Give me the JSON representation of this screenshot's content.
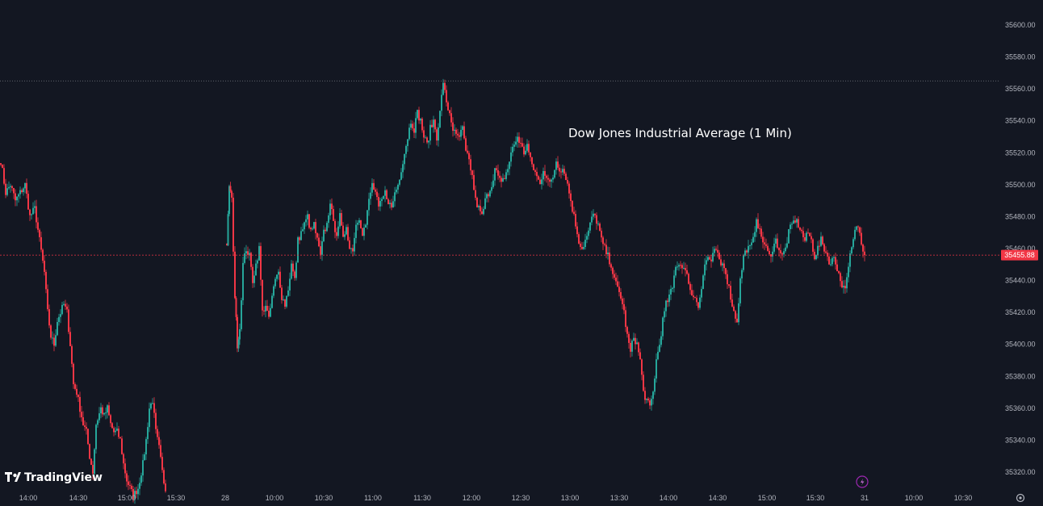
{
  "chart_data": {
    "type": "candlestick",
    "title": "Dow Jones Industrial Average (1 Min)",
    "brand": "TradingView",
    "y_axis": {
      "ticks": [
        "35320.00",
        "35340.00",
        "35360.00",
        "35380.00",
        "35400.00",
        "35420.00",
        "35440.00",
        "35460.00",
        "35480.00",
        "35500.00",
        "35520.00",
        "35540.00",
        "35560.00",
        "35580.00",
        "35600.00"
      ],
      "ylim": [
        35300,
        35610
      ]
    },
    "x_axis": {
      "ticks": [
        "14:00",
        "14:30",
        "15:00",
        "15:30",
        "28",
        "10:00",
        "10:30",
        "11:00",
        "11:30",
        "12:00",
        "12:30",
        "13:00",
        "13:30",
        "14:00",
        "14:30",
        "15:00",
        "15:30",
        "31",
        "10:00",
        "10:30"
      ]
    },
    "last_price": "35455.88",
    "high_line": 35565,
    "colors": {
      "up": "#26a69a",
      "down": "#f23645",
      "background": "#131722",
      "text": "#b2b5be",
      "price_line": "#f23645",
      "high_line": "#787b86"
    },
    "series": [
      {
        "segment": "day1",
        "close_path": [
          [
            0,
            35515
          ],
          [
            6,
            35495
          ],
          [
            12,
            35500
          ],
          [
            18,
            35490
          ],
          [
            24,
            35495
          ],
          [
            30,
            35500
          ],
          [
            36,
            35480
          ],
          [
            42,
            35485
          ],
          [
            48,
            35465
          ],
          [
            54,
            35445
          ],
          [
            58,
            35420
          ],
          [
            62,
            35405
          ],
          [
            66,
            35400
          ],
          [
            70,
            35415
          ],
          [
            74,
            35420
          ],
          [
            78,
            35425
          ],
          [
            82,
            35420
          ],
          [
            86,
            35400
          ],
          [
            90,
            35375
          ],
          [
            94,
            35370
          ],
          [
            98,
            35360
          ],
          [
            102,
            35350
          ],
          [
            106,
            35345
          ],
          [
            110,
            35330
          ],
          [
            114,
            35320
          ],
          [
            118,
            35350
          ],
          [
            124,
            35360
          ],
          [
            128,
            35355
          ],
          [
            132,
            35360
          ],
          [
            136,
            35350
          ],
          [
            140,
            35345
          ],
          [
            144,
            35345
          ],
          [
            148,
            35340
          ],
          [
            152,
            35325
          ],
          [
            156,
            35315
          ],
          [
            160,
            35310
          ],
          [
            164,
            35305
          ],
          [
            170,
            35310
          ],
          [
            176,
            35325
          ],
          [
            180,
            35340
          ],
          [
            184,
            35360
          ],
          [
            188,
            35365
          ],
          [
            192,
            35345
          ],
          [
            196,
            35335
          ],
          [
            200,
            35320
          ],
          [
            204,
            35308
          ]
        ]
      },
      {
        "segment": "day2",
        "close_path": [
          [
            280,
            35460
          ],
          [
            283,
            35500
          ],
          [
            286,
            35490
          ],
          [
            290,
            35430
          ],
          [
            293,
            35400
          ],
          [
            296,
            35410
          ],
          [
            300,
            35450
          ],
          [
            304,
            35460
          ],
          [
            308,
            35455
          ],
          [
            312,
            35440
          ],
          [
            316,
            35450
          ],
          [
            320,
            35460
          ],
          [
            324,
            35420
          ],
          [
            328,
            35425
          ],
          [
            332,
            35415
          ],
          [
            336,
            35430
          ],
          [
            340,
            35440
          ],
          [
            344,
            35445
          ],
          [
            348,
            35430
          ],
          [
            352,
            35425
          ],
          [
            356,
            35435
          ],
          [
            360,
            35450
          ],
          [
            364,
            35440
          ],
          [
            368,
            35465
          ],
          [
            372,
            35470
          ],
          [
            376,
            35475
          ],
          [
            380,
            35480
          ],
          [
            384,
            35470
          ],
          [
            388,
            35475
          ],
          [
            392,
            35465
          ],
          [
            396,
            35455
          ],
          [
            400,
            35470
          ],
          [
            404,
            35475
          ],
          [
            408,
            35490
          ],
          [
            412,
            35475
          ],
          [
            416,
            35470
          ],
          [
            420,
            35480
          ],
          [
            424,
            35465
          ],
          [
            428,
            35475
          ],
          [
            432,
            35460
          ],
          [
            436,
            35460
          ],
          [
            440,
            35475
          ],
          [
            444,
            35480
          ],
          [
            448,
            35470
          ],
          [
            452,
            35475
          ],
          [
            456,
            35490
          ],
          [
            460,
            35500
          ],
          [
            464,
            35495
          ],
          [
            468,
            35485
          ],
          [
            472,
            35490
          ],
          [
            476,
            35495
          ],
          [
            480,
            35490
          ],
          [
            484,
            35485
          ],
          [
            488,
            35495
          ],
          [
            492,
            35500
          ],
          [
            496,
            35510
          ],
          [
            500,
            35520
          ],
          [
            504,
            35530
          ],
          [
            508,
            35540
          ],
          [
            512,
            35535
          ],
          [
            516,
            35545
          ],
          [
            520,
            35540
          ],
          [
            524,
            35530
          ],
          [
            528,
            35525
          ],
          [
            532,
            35535
          ],
          [
            536,
            35540
          ],
          [
            540,
            35530
          ],
          [
            544,
            35545
          ],
          [
            548,
            35565
          ],
          [
            552,
            35550
          ],
          [
            556,
            35545
          ],
          [
            560,
            35535
          ],
          [
            564,
            35530
          ],
          [
            568,
            35530
          ],
          [
            572,
            35535
          ],
          [
            576,
            35520
          ],
          [
            580,
            35515
          ],
          [
            584,
            35505
          ],
          [
            588,
            35490
          ],
          [
            592,
            35485
          ],
          [
            596,
            35480
          ],
          [
            600,
            35490
          ],
          [
            604,
            35495
          ],
          [
            608,
            35500
          ],
          [
            612,
            35510
          ],
          [
            616,
            35505
          ],
          [
            620,
            35500
          ],
          [
            624,
            35505
          ],
          [
            628,
            35510
          ],
          [
            632,
            35520
          ],
          [
            636,
            35525
          ],
          [
            640,
            35530
          ],
          [
            644,
            35525
          ],
          [
            648,
            35520
          ],
          [
            652,
            35525
          ],
          [
            656,
            35515
          ],
          [
            660,
            35510
          ],
          [
            664,
            35505
          ],
          [
            668,
            35500
          ],
          [
            672,
            35510
          ],
          [
            676,
            35505
          ],
          [
            680,
            35500
          ],
          [
            684,
            35505
          ],
          [
            688,
            35515
          ],
          [
            692,
            35510
          ],
          [
            696,
            35510
          ],
          [
            700,
            35505
          ],
          [
            704,
            35495
          ],
          [
            708,
            35485
          ],
          [
            712,
            35475
          ],
          [
            716,
            35465
          ],
          [
            720,
            35460
          ],
          [
            724,
            35465
          ],
          [
            728,
            35470
          ],
          [
            732,
            35480
          ],
          [
            736,
            35480
          ],
          [
            740,
            35475
          ],
          [
            744,
            35465
          ],
          [
            748,
            35460
          ],
          [
            752,
            35455
          ],
          [
            756,
            35450
          ],
          [
            760,
            35440
          ],
          [
            764,
            35435
          ],
          [
            768,
            35430
          ],
          [
            772,
            35420
          ],
          [
            776,
            35405
          ],
          [
            780,
            35395
          ],
          [
            784,
            35405
          ],
          [
            788,
            35400
          ],
          [
            792,
            35390
          ],
          [
            796,
            35370
          ],
          [
            800,
            35365
          ],
          [
            804,
            35360
          ],
          [
            808,
            35370
          ],
          [
            812,
            35390
          ],
          [
            816,
            35400
          ],
          [
            820,
            35415
          ],
          [
            824,
            35425
          ],
          [
            828,
            35430
          ],
          [
            832,
            35435
          ],
          [
            836,
            35450
          ],
          [
            840,
            35450
          ],
          [
            844,
            35450
          ],
          [
            848,
            35445
          ],
          [
            852,
            35440
          ],
          [
            856,
            35430
          ],
          [
            860,
            35430
          ],
          [
            864,
            35425
          ],
          [
            868,
            35435
          ],
          [
            872,
            35450
          ],
          [
            876,
            35455
          ],
          [
            880,
            35450
          ],
          [
            884,
            35460
          ],
          [
            888,
            35455
          ],
          [
            892,
            35450
          ],
          [
            896,
            35450
          ],
          [
            900,
            35440
          ],
          [
            904,
            35430
          ],
          [
            908,
            35420
          ],
          [
            912,
            35415
          ],
          [
            916,
            35440
          ],
          [
            920,
            35455
          ],
          [
            924,
            35460
          ],
          [
            928,
            35460
          ],
          [
            932,
            35465
          ],
          [
            936,
            35480
          ],
          [
            940,
            35470
          ],
          [
            944,
            35465
          ],
          [
            948,
            35460
          ],
          [
            952,
            35455
          ],
          [
            956,
            35460
          ],
          [
            960,
            35465
          ],
          [
            964,
            35460
          ],
          [
            968,
            35455
          ],
          [
            972,
            35460
          ],
          [
            976,
            35470
          ],
          [
            980,
            35475
          ],
          [
            984,
            35478
          ],
          [
            988,
            35475
          ],
          [
            992,
            35470
          ],
          [
            996,
            35465
          ],
          [
            1000,
            35470
          ],
          [
            1004,
            35465
          ],
          [
            1008,
            35455
          ],
          [
            1012,
            35460
          ],
          [
            1016,
            35465
          ],
          [
            1020,
            35460
          ],
          [
            1024,
            35455
          ],
          [
            1028,
            35450
          ],
          [
            1032,
            35455
          ],
          [
            1036,
            35448
          ],
          [
            1040,
            35440
          ],
          [
            1044,
            35435
          ],
          [
            1048,
            35440
          ],
          [
            1052,
            35455
          ],
          [
            1056,
            35465
          ],
          [
            1060,
            35475
          ],
          [
            1064,
            35470
          ],
          [
            1068,
            35460
          ],
          [
            1070,
            35455.88
          ]
        ]
      }
    ]
  },
  "toolbar": {
    "bolt_icon": "lightning-icon",
    "settings_icon": "gear-icon"
  }
}
